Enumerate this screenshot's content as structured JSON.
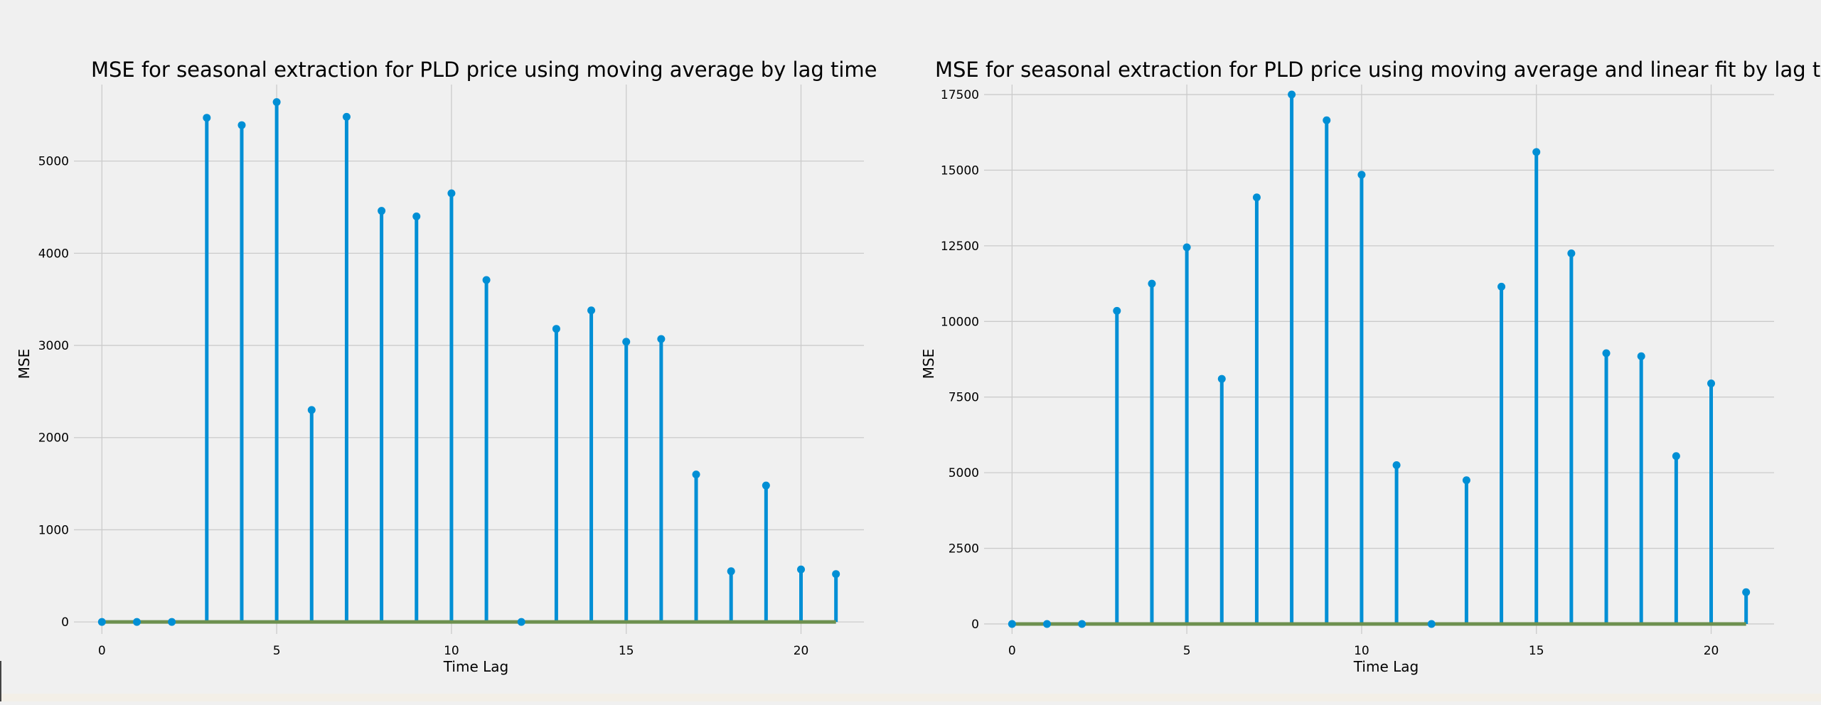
{
  "colors": {
    "background": "#f0f0f0",
    "stem": "#008fd5",
    "baseline": "#6d904f",
    "grid": "#cbcbcb"
  },
  "chart_data": [
    {
      "type": "stem",
      "title": "MSE for seasonal extraction for PLD price using moving average by lag time",
      "xlabel": "Time Lag",
      "ylabel": "MSE",
      "xlim": [
        -0.8,
        21.8
      ],
      "ylim": [
        -130,
        5830
      ],
      "xticks": [
        0,
        5,
        10,
        15,
        20
      ],
      "yticks": [
        0,
        1000,
        2000,
        3000,
        4000,
        5000
      ],
      "ytick_labels": [
        "0",
        "1000",
        "2000",
        "3000",
        "4000",
        "5000"
      ],
      "grid": true,
      "x": [
        0,
        1,
        2,
        3,
        4,
        5,
        6,
        7,
        8,
        9,
        10,
        11,
        12,
        13,
        14,
        15,
        16,
        17,
        18,
        19,
        20,
        21
      ],
      "values": [
        0,
        0,
        0,
        5470,
        5390,
        5640,
        2300,
        5480,
        4460,
        4400,
        4650,
        3710,
        0,
        3180,
        3380,
        3040,
        3070,
        1600,
        550,
        1480,
        570,
        520
      ]
    },
    {
      "type": "stem",
      "title": "MSE for seasonal extraction for PLD price using moving average and linear fit by lag time",
      "xlabel": "Time Lag",
      "ylabel": "MSE",
      "xlim": [
        -0.8,
        21.8
      ],
      "ylim": [
        -330,
        17830
      ],
      "xticks": [
        0,
        5,
        10,
        15,
        20
      ],
      "yticks": [
        0,
        2500,
        5000,
        7500,
        10000,
        12500,
        15000,
        17500
      ],
      "ytick_labels": [
        "0",
        "2500",
        "5000",
        "7500",
        "10000",
        "12500",
        "15000",
        "17500"
      ],
      "grid": true,
      "x": [
        0,
        1,
        2,
        3,
        4,
        5,
        6,
        7,
        8,
        9,
        10,
        11,
        12,
        13,
        14,
        15,
        16,
        17,
        18,
        19,
        20,
        21
      ],
      "values": [
        0,
        0,
        0,
        10350,
        11250,
        12450,
        8100,
        14100,
        17500,
        16650,
        14850,
        5250,
        0,
        4750,
        11150,
        15600,
        12250,
        8950,
        8850,
        5550,
        7950,
        1050
      ]
    }
  ]
}
